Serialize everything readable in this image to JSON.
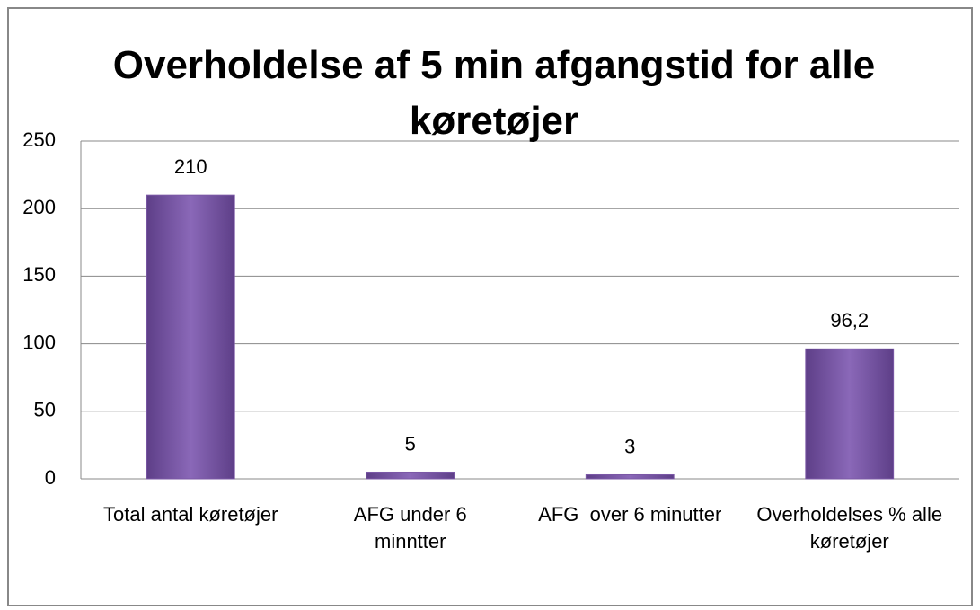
{
  "chart_data": {
    "type": "bar",
    "title": "Overholdelse af 5 min afgangstid for alle køretøjer",
    "categories": [
      "Total antal køretøjer",
      "AFG under 6 minntter",
      "AFG  over 6 minutter",
      "Overholdelses % alle køretøjer"
    ],
    "values": [
      210,
      5,
      3,
      96.2
    ],
    "value_labels": [
      "210",
      "5",
      "3",
      "96,2"
    ],
    "color": "#7b58a6",
    "ylim": [
      0,
      250
    ],
    "yticks": [
      0,
      50,
      100,
      150,
      200,
      250
    ],
    "grid": true
  }
}
